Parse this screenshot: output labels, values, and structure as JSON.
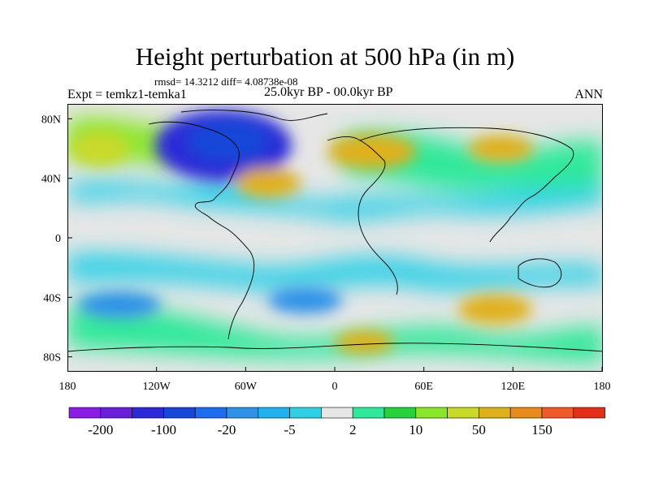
{
  "title": "Height perturbation at 500 hPa (in m)",
  "stats": "rmsd= 14.3212 diff= 4.08738e-08",
  "left_label": "Expt = temkz1-temka1",
  "center_label": "25.0kyr BP - 00.0kyr BP",
  "right_label": "ANN",
  "colors": {
    "levels": [
      "#8b1ce6",
      "#6a1ed9",
      "#2c2ad6",
      "#1747d8",
      "#1e6cf0",
      "#2f92e8",
      "#22b0ef",
      "#2fd0e6",
      "#e6e6e6",
      "#2fe89a",
      "#27d13a",
      "#8ae62b",
      "#c9d92a",
      "#e0b01c",
      "#e88a1e",
      "#f05a28",
      "#e23018"
    ],
    "land_outline": "#000000",
    "frame": "#000000"
  },
  "chart_data": {
    "type": "filled-contour-map",
    "variable": "500 hPa geopotential height perturbation",
    "units": "m",
    "x_range": [
      -180,
      180
    ],
    "y_range": [
      -90,
      90
    ],
    "x_ticks": [
      {
        "value": -180,
        "label": "180"
      },
      {
        "value": -120,
        "label": "120W"
      },
      {
        "value": -60,
        "label": "60W"
      },
      {
        "value": 0,
        "label": "0"
      },
      {
        "value": 60,
        "label": "60E"
      },
      {
        "value": 120,
        "label": "120E"
      },
      {
        "value": 180,
        "label": "180"
      }
    ],
    "y_ticks": [
      {
        "value": 80,
        "label": "80N"
      },
      {
        "value": 40,
        "label": "40N"
      },
      {
        "value": 0,
        "label": "0"
      },
      {
        "value": -40,
        "label": "40S"
      },
      {
        "value": -80,
        "label": "80S"
      }
    ],
    "colorbar_labels": [
      "-200",
      "-100",
      "-20",
      "-5",
      "2",
      "10",
      "50",
      "150"
    ],
    "fields": [
      {
        "name": "north-america-atlantic-low",
        "level": 2,
        "lon": -75,
        "lat": 62,
        "rx": 46,
        "ry": 24
      },
      {
        "name": "north-america-low-core",
        "level": 3,
        "lon": -72,
        "lat": 65,
        "rx": 28,
        "ry": 14
      },
      {
        "name": "north-atlantic-high",
        "level": 13,
        "lon": -45,
        "lat": 37,
        "rx": 22,
        "ry": 10
      },
      {
        "name": "europe-high",
        "level": 13,
        "lon": 25,
        "lat": 58,
        "rx": 30,
        "ry": 12
      },
      {
        "name": "siberia-high",
        "level": 13,
        "lon": 112,
        "lat": 60,
        "rx": 22,
        "ry": 9
      },
      {
        "name": "north-pacific-high",
        "level": 12,
        "lon": -158,
        "lat": 60,
        "rx": 20,
        "ry": 12
      },
      {
        "name": "south-atlantic-low",
        "level": 5,
        "lon": -20,
        "lat": -42,
        "rx": 25,
        "ry": 9
      },
      {
        "name": "south-pacific-low",
        "level": 5,
        "lon": -145,
        "lat": -45,
        "rx": 28,
        "ry": 9
      },
      {
        "name": "indian-ocean-south-high",
        "level": 13,
        "lon": 108,
        "lat": -48,
        "rx": 25,
        "ry": 10
      },
      {
        "name": "southern-ocean-high",
        "level": 13,
        "lon": 20,
        "lat": -70,
        "rx": 20,
        "ry": 8
      }
    ]
  }
}
